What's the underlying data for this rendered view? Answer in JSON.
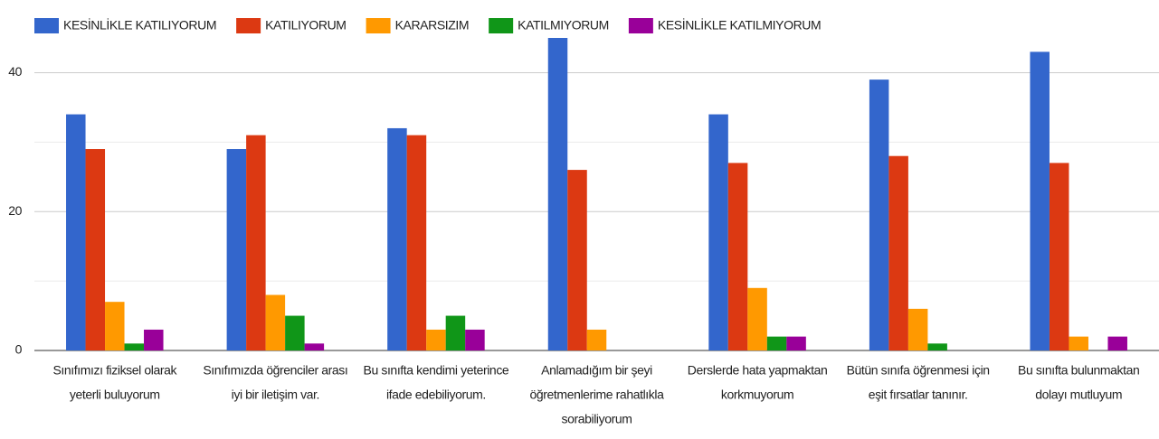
{
  "chart_data": {
    "type": "bar",
    "categories": [
      [
        "Sınıfımızı fiziksel olarak",
        "yeterli buluyorum"
      ],
      [
        "Sınıfımızda öğrenciler arası",
        "iyi bir iletişim var."
      ],
      [
        "Bu sınıfta kendimi yeterince",
        "ifade edebiliyorum."
      ],
      [
        "Anlamadığım bir şeyi",
        "öğretmenlerime rahatlıkla",
        "sorabiliyorum"
      ],
      [
        "Derslerde hata yapmaktan",
        "korkmuyorum"
      ],
      [
        "Bütün sınıfa öğrenmesi için",
        "eşit fırsatlar tanınır."
      ],
      [
        "Bu sınıfta bulunmaktan",
        "dolayı mutluyum"
      ]
    ],
    "series": [
      {
        "name": "KESİNLİKLE KATILIYORUM",
        "color": "#3366cc",
        "values": [
          34,
          29,
          32,
          45,
          34,
          39,
          43
        ]
      },
      {
        "name": "KATILIYORUM",
        "color": "#dc3912",
        "values": [
          29,
          31,
          31,
          26,
          27,
          28,
          27
        ]
      },
      {
        "name": "KARARSIZIM",
        "color": "#ff9900",
        "values": [
          7,
          8,
          3,
          3,
          9,
          6,
          2
        ]
      },
      {
        "name": "KATILMIYORUM",
        "color": "#109618",
        "values": [
          1,
          5,
          5,
          0,
          2,
          1,
          0
        ]
      },
      {
        "name": "KESİNLİKLE KATILMIYORUM",
        "color": "#990099",
        "values": [
          3,
          1,
          3,
          0,
          2,
          0,
          2
        ]
      }
    ],
    "ylim": [
      0,
      45
    ],
    "yticks": [
      0,
      20,
      40
    ],
    "minor_yticks": [
      10,
      30
    ],
    "grid": true,
    "legend": "top"
  }
}
